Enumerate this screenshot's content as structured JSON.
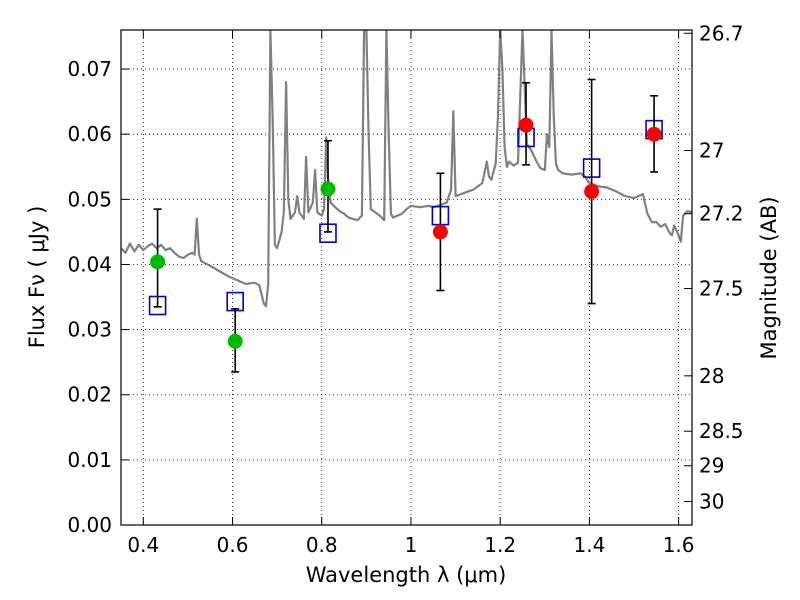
{
  "chart_data": {
    "type": "scatter",
    "title": "",
    "xlabel": "Wavelength  λ (μm)",
    "ylabel": "Flux  Fν  ( μJy )",
    "y2label": "Magnitude (AB)",
    "xlim": [
      0.35,
      1.63
    ],
    "ylim": [
      0.0,
      0.076
    ],
    "grid": true,
    "x_ticks": [
      0.4,
      0.6,
      0.8,
      1.0,
      1.2,
      1.4,
      1.6
    ],
    "x_tick_labels": [
      "0.4",
      "0.6",
      "0.8",
      "1",
      "1.2",
      "1.4",
      "1.6"
    ],
    "y_ticks": [
      0.0,
      0.01,
      0.02,
      0.03,
      0.04,
      0.05,
      0.06,
      0.07
    ],
    "y_tick_labels": [
      "0.00",
      "0.01",
      "0.02",
      "0.03",
      "0.04",
      "0.05",
      "0.06",
      "0.07"
    ],
    "y2_ticks": [
      {
        "label": "26.7",
        "flux": 0.0755
      },
      {
        "label": "27",
        "flux": 0.0575
      },
      {
        "label": "27.2",
        "flux": 0.0478
      },
      {
        "label": "27.5",
        "flux": 0.0363
      },
      {
        "label": "28",
        "flux": 0.0229
      },
      {
        "label": "28.5",
        "flux": 0.0144
      },
      {
        "label": "29",
        "flux": 0.0091
      },
      {
        "label": "30",
        "flux": 0.0036
      }
    ],
    "colors": {
      "model_spectrum": "#808080",
      "green_points": "#00bb00",
      "red_points": "#ff0000",
      "model_squares": "#0000cc",
      "errorbars": "#000000"
    },
    "series": [
      {
        "kind": "line",
        "color": "#808080",
        "points": [
          [
            0.35,
            0.0425
          ],
          [
            0.36,
            0.0418
          ],
          [
            0.37,
            0.0432
          ],
          [
            0.38,
            0.042
          ],
          [
            0.39,
            0.043
          ],
          [
            0.4,
            0.0422
          ],
          [
            0.41,
            0.0428
          ],
          [
            0.42,
            0.0432
          ],
          [
            0.43,
            0.0425
          ],
          [
            0.44,
            0.043
          ],
          [
            0.45,
            0.0422
          ],
          [
            0.46,
            0.0425
          ],
          [
            0.47,
            0.0418
          ],
          [
            0.48,
            0.0412
          ],
          [
            0.49,
            0.041
          ],
          [
            0.5,
            0.0415
          ],
          [
            0.51,
            0.0418
          ],
          [
            0.515,
            0.0415
          ],
          [
            0.52,
            0.047
          ],
          [
            0.525,
            0.0415
          ],
          [
            0.53,
            0.0405
          ],
          [
            0.55,
            0.0398
          ],
          [
            0.57,
            0.039
          ],
          [
            0.59,
            0.0382
          ],
          [
            0.61,
            0.0376
          ],
          [
            0.63,
            0.037
          ],
          [
            0.65,
            0.0372
          ],
          [
            0.66,
            0.0368
          ],
          [
            0.67,
            0.034
          ],
          [
            0.675,
            0.0336
          ],
          [
            0.68,
            0.037
          ],
          [
            0.685,
            0.076
          ],
          [
            0.69,
            0.062
          ],
          [
            0.695,
            0.043
          ],
          [
            0.7,
            0.0425
          ],
          [
            0.71,
            0.045
          ],
          [
            0.715,
            0.048
          ],
          [
            0.72,
            0.068
          ],
          [
            0.725,
            0.05
          ],
          [
            0.73,
            0.047
          ],
          [
            0.74,
            0.048
          ],
          [
            0.745,
            0.0505
          ],
          [
            0.75,
            0.048
          ],
          [
            0.76,
            0.047
          ],
          [
            0.765,
            0.0565
          ],
          [
            0.77,
            0.048
          ],
          [
            0.78,
            0.0495
          ],
          [
            0.785,
            0.0545
          ],
          [
            0.79,
            0.048
          ],
          [
            0.8,
            0.0475
          ],
          [
            0.805,
            0.0485
          ],
          [
            0.81,
            0.0595
          ],
          [
            0.815,
            0.052
          ],
          [
            0.82,
            0.0495
          ],
          [
            0.83,
            0.0488
          ],
          [
            0.84,
            0.0482
          ],
          [
            0.85,
            0.0478
          ],
          [
            0.86,
            0.0472
          ],
          [
            0.87,
            0.047
          ],
          [
            0.88,
            0.0468
          ],
          [
            0.89,
            0.0475
          ],
          [
            0.895,
            0.076
          ],
          [
            0.9,
            0.076
          ],
          [
            0.905,
            0.06
          ],
          [
            0.91,
            0.0485
          ],
          [
            0.92,
            0.048
          ],
          [
            0.93,
            0.0475
          ],
          [
            0.94,
            0.0468
          ],
          [
            0.945,
            0.076
          ],
          [
            0.95,
            0.06
          ],
          [
            0.955,
            0.0478
          ],
          [
            0.96,
            0.0472
          ],
          [
            0.97,
            0.0475
          ],
          [
            0.98,
            0.0478
          ],
          [
            0.99,
            0.0485
          ],
          [
            1.0,
            0.049
          ],
          [
            1.02,
            0.0488
          ],
          [
            1.04,
            0.049
          ],
          [
            1.05,
            0.0488
          ],
          [
            1.06,
            0.049
          ],
          [
            1.08,
            0.0495
          ],
          [
            1.09,
            0.0515
          ],
          [
            1.095,
            0.0635
          ],
          [
            1.1,
            0.0505
          ],
          [
            1.12,
            0.051
          ],
          [
            1.14,
            0.0515
          ],
          [
            1.15,
            0.052
          ],
          [
            1.16,
            0.0525
          ],
          [
            1.17,
            0.0558
          ],
          [
            1.175,
            0.0535
          ],
          [
            1.18,
            0.053
          ],
          [
            1.19,
            0.0555
          ],
          [
            1.195,
            0.0625
          ],
          [
            1.2,
            0.076
          ],
          [
            1.205,
            0.07
          ],
          [
            1.21,
            0.058
          ],
          [
            1.215,
            0.055
          ],
          [
            1.22,
            0.0558
          ],
          [
            1.23,
            0.0552
          ],
          [
            1.24,
            0.0556
          ],
          [
            1.25,
            0.076
          ],
          [
            1.26,
            0.0585
          ],
          [
            1.27,
            0.0575
          ],
          [
            1.28,
            0.056
          ],
          [
            1.29,
            0.0548
          ],
          [
            1.3,
            0.0545
          ],
          [
            1.305,
            0.06
          ],
          [
            1.31,
            0.058
          ],
          [
            1.315,
            0.076
          ],
          [
            1.32,
            0.063
          ],
          [
            1.325,
            0.0555
          ],
          [
            1.33,
            0.0545
          ],
          [
            1.34,
            0.054
          ],
          [
            1.36,
            0.0538
          ],
          [
            1.38,
            0.054
          ],
          [
            1.39,
            0.0535
          ],
          [
            1.4,
            0.0525
          ],
          [
            1.42,
            0.052
          ],
          [
            1.44,
            0.0518
          ],
          [
            1.46,
            0.0512
          ],
          [
            1.48,
            0.0505
          ],
          [
            1.5,
            0.0502
          ],
          [
            1.52,
            0.0508
          ],
          [
            1.53,
            0.0478
          ],
          [
            1.54,
            0.0465
          ],
          [
            1.55,
            0.0465
          ],
          [
            1.56,
            0.0458
          ],
          [
            1.57,
            0.0462
          ],
          [
            1.58,
            0.0448
          ],
          [
            1.585,
            0.0445
          ],
          [
            1.59,
            0.046
          ],
          [
            1.6,
            0.0445
          ],
          [
            1.605,
            0.0435
          ],
          [
            1.61,
            0.0475
          ],
          [
            1.62,
            0.0482
          ],
          [
            1.63,
            0.048
          ]
        ]
      },
      {
        "kind": "errorbar-points",
        "color": "#00bb00",
        "points": [
          {
            "x": 0.432,
            "y": 0.0404,
            "ylo": 0.0335,
            "yhi": 0.0485
          },
          {
            "x": 0.606,
            "y": 0.0282,
            "ylo": 0.0235,
            "yhi": 0.0332
          },
          {
            "x": 0.814,
            "y": 0.0516,
            "ylo": 0.045,
            "yhi": 0.059
          }
        ]
      },
      {
        "kind": "errorbar-points",
        "color": "#ff0000",
        "points": [
          {
            "x": 1.066,
            "y": 0.045,
            "ylo": 0.036,
            "yhi": 0.054
          },
          {
            "x": 1.258,
            "y": 0.0614,
            "ylo": 0.0553,
            "yhi": 0.0679
          },
          {
            "x": 1.405,
            "y": 0.0512,
            "ylo": 0.034,
            "yhi": 0.0684
          },
          {
            "x": 1.545,
            "y": 0.06,
            "ylo": 0.0542,
            "yhi": 0.0659
          }
        ]
      },
      {
        "kind": "squares",
        "color": "#0000cc",
        "points": [
          {
            "x": 0.432,
            "y": 0.0337
          },
          {
            "x": 0.606,
            "y": 0.0343
          },
          {
            "x": 0.814,
            "y": 0.0448
          },
          {
            "x": 1.066,
            "y": 0.0475
          },
          {
            "x": 1.258,
            "y": 0.0595
          },
          {
            "x": 1.405,
            "y": 0.0548
          },
          {
            "x": 1.545,
            "y": 0.0607
          }
        ]
      }
    ]
  }
}
